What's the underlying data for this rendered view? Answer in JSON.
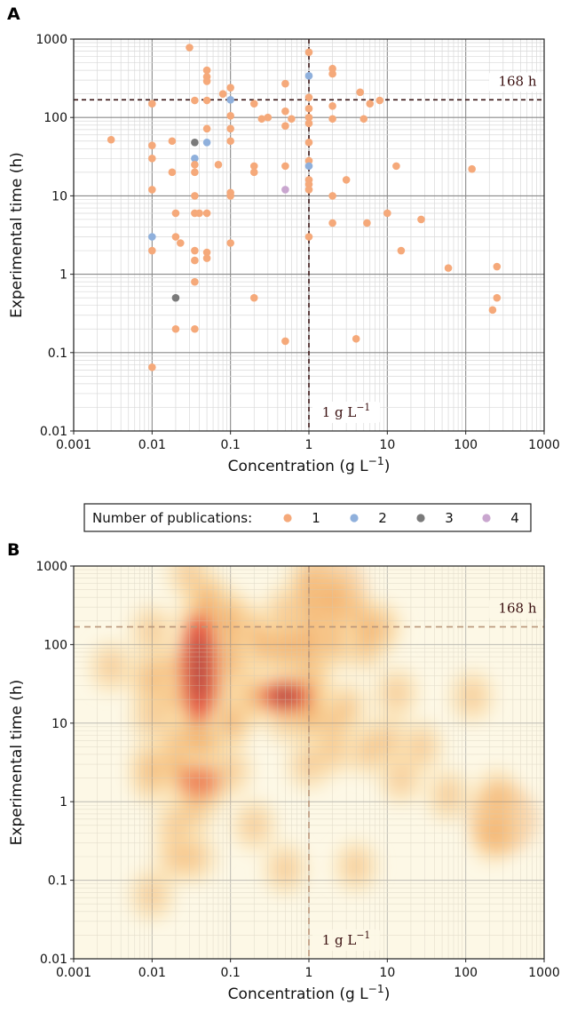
{
  "chart_data": [
    {
      "panel": "A",
      "type": "scatter",
      "xlabel": "Concentration (g L",
      "xlabel_sup": "−1",
      "xlabel_tail": ")",
      "ylabel": "Experimental time (h)",
      "x_scale": "log",
      "y_scale": "log",
      "xlim": [
        0.001,
        1000
      ],
      "ylim": [
        0.01,
        1000
      ],
      "x_ticks": [
        0.001,
        0.01,
        0.1,
        1,
        10,
        100,
        1000
      ],
      "x_tick_labels": [
        "0.001",
        "0.01",
        "0.1",
        "1",
        "10",
        "100",
        "1000"
      ],
      "y_ticks": [
        0.01,
        0.1,
        1,
        10,
        100,
        1000
      ],
      "y_tick_labels": [
        "0.01",
        "0.1",
        "1",
        "10",
        "100",
        "1000"
      ],
      "grid": true,
      "reference_lines": {
        "horizontal": {
          "y": 168,
          "label": "168 h"
        },
        "vertical": {
          "x": 1,
          "label": "1 g L",
          "label_sup": "−1"
        }
      },
      "colors": {
        "1": "#f5a97a",
        "2": "#8fb0dc",
        "3": "#7a7a7a",
        "4": "#c9a6cf",
        "ref_line": "#3a1515"
      },
      "points": [
        {
          "x": 0.003,
          "y": 52,
          "n": 1
        },
        {
          "x": 0.01,
          "y": 150,
          "n": 1
        },
        {
          "x": 0.01,
          "y": 44,
          "n": 1
        },
        {
          "x": 0.01,
          "y": 30,
          "n": 1
        },
        {
          "x": 0.01,
          "y": 12,
          "n": 1
        },
        {
          "x": 0.01,
          "y": 3,
          "n": 2
        },
        {
          "x": 0.01,
          "y": 2,
          "n": 1
        },
        {
          "x": 0.01,
          "y": 0.065,
          "n": 1
        },
        {
          "x": 0.018,
          "y": 50,
          "n": 1
        },
        {
          "x": 0.018,
          "y": 20,
          "n": 1
        },
        {
          "x": 0.02,
          "y": 6,
          "n": 1
        },
        {
          "x": 0.02,
          "y": 3,
          "n": 1
        },
        {
          "x": 0.02,
          "y": 0.2,
          "n": 1
        },
        {
          "x": 0.02,
          "y": 0.5,
          "n": 3
        },
        {
          "x": 0.023,
          "y": 2.5,
          "n": 1
        },
        {
          "x": 0.03,
          "y": 780,
          "n": 1
        },
        {
          "x": 0.035,
          "y": 165,
          "n": 1
        },
        {
          "x": 0.035,
          "y": 48,
          "n": 3
        },
        {
          "x": 0.035,
          "y": 30,
          "n": 2
        },
        {
          "x": 0.035,
          "y": 25,
          "n": 1
        },
        {
          "x": 0.035,
          "y": 20,
          "n": 1
        },
        {
          "x": 0.035,
          "y": 10,
          "n": 1
        },
        {
          "x": 0.035,
          "y": 6,
          "n": 1
        },
        {
          "x": 0.035,
          "y": 2,
          "n": 1
        },
        {
          "x": 0.035,
          "y": 1.5,
          "n": 1
        },
        {
          "x": 0.035,
          "y": 0.8,
          "n": 1
        },
        {
          "x": 0.035,
          "y": 0.2,
          "n": 1
        },
        {
          "x": 0.04,
          "y": 6,
          "n": 1
        },
        {
          "x": 0.05,
          "y": 400,
          "n": 1
        },
        {
          "x": 0.05,
          "y": 330,
          "n": 1
        },
        {
          "x": 0.05,
          "y": 290,
          "n": 1
        },
        {
          "x": 0.05,
          "y": 165,
          "n": 1
        },
        {
          "x": 0.05,
          "y": 72,
          "n": 1
        },
        {
          "x": 0.05,
          "y": 48,
          "n": 2
        },
        {
          "x": 0.05,
          "y": 6,
          "n": 1
        },
        {
          "x": 0.05,
          "y": 1.9,
          "n": 1
        },
        {
          "x": 0.05,
          "y": 1.6,
          "n": 1
        },
        {
          "x": 0.07,
          "y": 25,
          "n": 1
        },
        {
          "x": 0.08,
          "y": 200,
          "n": 1
        },
        {
          "x": 0.1,
          "y": 240,
          "n": 1
        },
        {
          "x": 0.1,
          "y": 168,
          "n": 2
        },
        {
          "x": 0.1,
          "y": 105,
          "n": 1
        },
        {
          "x": 0.1,
          "y": 72,
          "n": 1
        },
        {
          "x": 0.1,
          "y": 50,
          "n": 1
        },
        {
          "x": 0.1,
          "y": 11,
          "n": 1
        },
        {
          "x": 0.1,
          "y": 10,
          "n": 1
        },
        {
          "x": 0.1,
          "y": 2.5,
          "n": 1
        },
        {
          "x": 0.2,
          "y": 150,
          "n": 1
        },
        {
          "x": 0.2,
          "y": 24,
          "n": 1
        },
        {
          "x": 0.2,
          "y": 20,
          "n": 1
        },
        {
          "x": 0.2,
          "y": 0.5,
          "n": 1
        },
        {
          "x": 0.25,
          "y": 96,
          "n": 1
        },
        {
          "x": 0.3,
          "y": 100,
          "n": 1
        },
        {
          "x": 0.5,
          "y": 270,
          "n": 1
        },
        {
          "x": 0.5,
          "y": 120,
          "n": 1
        },
        {
          "x": 0.5,
          "y": 78,
          "n": 1
        },
        {
          "x": 0.5,
          "y": 24,
          "n": 1
        },
        {
          "x": 0.5,
          "y": 12,
          "n": 4
        },
        {
          "x": 0.5,
          "y": 0.14,
          "n": 1
        },
        {
          "x": 0.6,
          "y": 96,
          "n": 1
        },
        {
          "x": 1,
          "y": 680,
          "n": 1
        },
        {
          "x": 1,
          "y": 340,
          "n": 2
        },
        {
          "x": 1,
          "y": 180,
          "n": 1
        },
        {
          "x": 1,
          "y": 130,
          "n": 1
        },
        {
          "x": 1,
          "y": 100,
          "n": 1
        },
        {
          "x": 1,
          "y": 84,
          "n": 1
        },
        {
          "x": 1,
          "y": 48,
          "n": 1
        },
        {
          "x": 1,
          "y": 28,
          "n": 1
        },
        {
          "x": 1,
          "y": 24,
          "n": 2
        },
        {
          "x": 1,
          "y": 16,
          "n": 1
        },
        {
          "x": 1,
          "y": 14,
          "n": 1
        },
        {
          "x": 1,
          "y": 12,
          "n": 1
        },
        {
          "x": 1,
          "y": 3,
          "n": 1
        },
        {
          "x": 2,
          "y": 420,
          "n": 1
        },
        {
          "x": 2,
          "y": 360,
          "n": 1
        },
        {
          "x": 2,
          "y": 140,
          "n": 1
        },
        {
          "x": 2,
          "y": 96,
          "n": 1
        },
        {
          "x": 2,
          "y": 10,
          "n": 1
        },
        {
          "x": 2,
          "y": 4.5,
          "n": 1
        },
        {
          "x": 3,
          "y": 16,
          "n": 1
        },
        {
          "x": 4,
          "y": 0.15,
          "n": 1
        },
        {
          "x": 4.5,
          "y": 210,
          "n": 1
        },
        {
          "x": 5,
          "y": 96,
          "n": 1
        },
        {
          "x": 5.5,
          "y": 4.5,
          "n": 1
        },
        {
          "x": 6,
          "y": 150,
          "n": 1
        },
        {
          "x": 8,
          "y": 165,
          "n": 1
        },
        {
          "x": 10,
          "y": 6,
          "n": 1
        },
        {
          "x": 13,
          "y": 24,
          "n": 1
        },
        {
          "x": 15,
          "y": 2,
          "n": 1
        },
        {
          "x": 27,
          "y": 5,
          "n": 1
        },
        {
          "x": 60,
          "y": 1.2,
          "n": 1
        },
        {
          "x": 120,
          "y": 22,
          "n": 1
        },
        {
          "x": 220,
          "y": 0.35,
          "n": 1
        },
        {
          "x": 250,
          "y": 1.25,
          "n": 1
        },
        {
          "x": 250,
          "y": 0.5,
          "n": 1
        }
      ]
    },
    {
      "panel": "B",
      "type": "heatmap",
      "xlabel": "Concentration (g L",
      "xlabel_sup": "−1",
      "xlabel_tail": ")",
      "ylabel": "Experimental time (h)",
      "x_scale": "log",
      "y_scale": "log",
      "xlim": [
        0.001,
        1000
      ],
      "ylim": [
        0.01,
        1000
      ],
      "x_ticks": [
        0.001,
        0.01,
        0.1,
        1,
        10,
        100,
        1000
      ],
      "x_tick_labels": [
        "0.001",
        "0.01",
        "0.1",
        "1",
        "10",
        "100",
        "1000"
      ],
      "y_ticks": [
        0.01,
        0.1,
        1,
        10,
        100,
        1000
      ],
      "y_tick_labels": [
        "0.01",
        "0.1",
        "1",
        "10",
        "100",
        "1000"
      ],
      "grid": true,
      "reference_lines": {
        "horizontal": {
          "y": 168,
          "label": "168 h"
        },
        "vertical": {
          "x": 1,
          "label": "1 g L",
          "label_sup": "−1"
        }
      },
      "density_peaks": [
        {
          "x": 0.04,
          "y": 50,
          "intensity": "high"
        },
        {
          "x": 0.5,
          "y": 22,
          "intensity": "high"
        },
        {
          "x": 0.04,
          "y": 1.8,
          "intensity": "medium"
        },
        {
          "x": 2,
          "y": 500,
          "intensity": "low"
        },
        {
          "x": 300,
          "y": 0.6,
          "intensity": "low"
        }
      ],
      "colormap": [
        "#fdf8e6",
        "#f9d8a0",
        "#f2a760",
        "#e8503d",
        "#7a4a4a"
      ]
    }
  ],
  "legend": {
    "title": "Number of publications:",
    "entries": [
      {
        "label": "1",
        "color": "#f5a97a"
      },
      {
        "label": "2",
        "color": "#8fb0dc"
      },
      {
        "label": "3",
        "color": "#7a7a7a"
      },
      {
        "label": "4",
        "color": "#c9a6cf"
      }
    ]
  },
  "panel_labels": [
    "A",
    "B"
  ]
}
